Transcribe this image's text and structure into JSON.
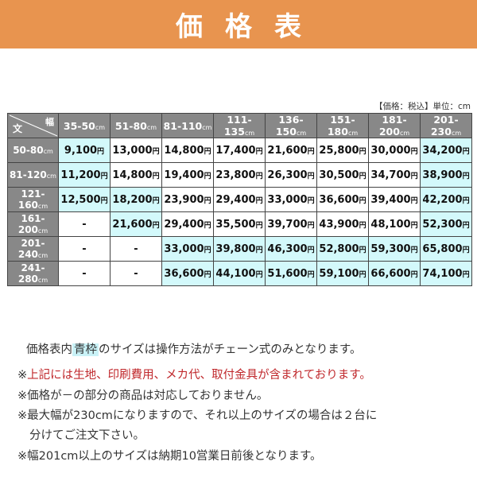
{
  "banner": {
    "title": "価格表",
    "color": "#e8944f"
  },
  "unit_note": "【価格：税込】単位：cm",
  "table": {
    "corner": {
      "length_label": "文",
      "width_label": "幅"
    },
    "unit": "cm",
    "yen": "円",
    "columns": [
      "35-50",
      "51-80",
      "81-110",
      "111-135",
      "136-150",
      "151-180",
      "181-200",
      "201-230"
    ],
    "rows": [
      {
        "label": "50-80",
        "values": [
          "9,100",
          "13,000",
          "14,800",
          "17,400",
          "21,600",
          "25,800",
          "30,000",
          "34,200"
        ],
        "blue": [
          true,
          false,
          false,
          false,
          false,
          false,
          false,
          true
        ]
      },
      {
        "label": "81-120",
        "values": [
          "11,200",
          "14,800",
          "19,400",
          "23,800",
          "26,300",
          "30,500",
          "34,700",
          "38,900"
        ],
        "blue": [
          true,
          false,
          false,
          false,
          false,
          false,
          false,
          true
        ]
      },
      {
        "label": "121-160",
        "values": [
          "12,500",
          "18,200",
          "23,900",
          "29,400",
          "33,000",
          "36,600",
          "39,400",
          "42,200"
        ],
        "blue": [
          true,
          true,
          false,
          false,
          false,
          false,
          false,
          true
        ]
      },
      {
        "label": "161-200",
        "values": [
          "-",
          "21,600",
          "29,400",
          "35,500",
          "39,700",
          "43,900",
          "48,100",
          "52,300"
        ],
        "blue": [
          false,
          true,
          false,
          false,
          false,
          false,
          false,
          true
        ]
      },
      {
        "label": "201-240",
        "values": [
          "-",
          "-",
          "33,000",
          "39,800",
          "46,300",
          "52,800",
          "59,300",
          "65,800"
        ],
        "blue": [
          false,
          false,
          true,
          true,
          true,
          true,
          true,
          true
        ]
      },
      {
        "label": "241-280",
        "values": [
          "-",
          "-",
          "36,600",
          "44,100",
          "51,600",
          "59,100",
          "66,600",
          "74,100"
        ],
        "blue": [
          false,
          false,
          true,
          true,
          true,
          true,
          true,
          true
        ]
      }
    ],
    "header_bg": "#888888",
    "blue_bg": "#d3f9fb"
  },
  "notes": {
    "chain_pre": "価格表内",
    "chain_highlight": "青枠",
    "chain_post": "のサイズは操作方法がチェーン式のみとなります。",
    "mark": "※",
    "red_note": "上記には生地、印刷費用、メカ代、取付金具が含まれております。",
    "dash_note": "※価格が－の部分の商品は対応しておりません。",
    "max_width_note_1": "※最大幅が230cmになりますので、それ以上のサイズの場合は２台に",
    "max_width_note_2": "分けてご注文下さい。",
    "delivery_note": "※幅201cm以上のサイズは納期10営業日前後となります。",
    "red_color": "#c0282c"
  }
}
